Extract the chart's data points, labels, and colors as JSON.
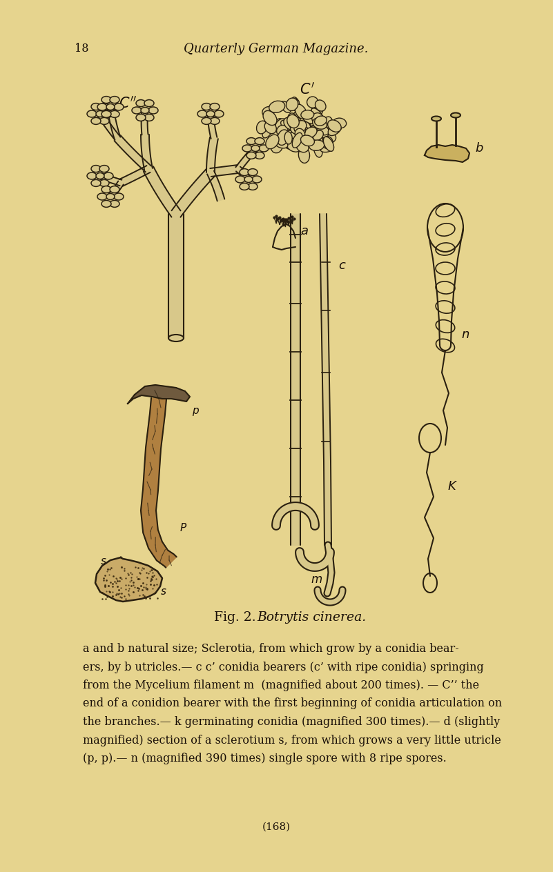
{
  "background_color": "#e6d48e",
  "page_width": 8.01,
  "page_height": 12.64,
  "page_number": "18",
  "header_text": "Quarterly German Magazine.",
  "fig_label": "Fig. 2.",
  "fig_species": "Botrytis cinerea.",
  "caption_lines": [
    "a and b natural size; Sclerotia, from which grow by a conidia bear-",
    "ers, by b utricles.— c c’ conidia bearers (c’ with ripe conidia) springing",
    "from the Mycelium filament m  (magnified about 200 times). — C’’ the",
    "end of a conidion bearer with the first beginning of conidia articulation on",
    "the branches.— k germinating conidia (magnified 300 times).— d (slightly",
    "magnified) section of a sclerotium s, from which grows a very little utricle",
    "(p, p).— n (magnified 390 times) single spore with 8 ripe spores."
  ],
  "page_num_bottom": "(168)",
  "ink_color": "#2a2010",
  "text_color": "#1a1008",
  "stem_fill": "#d8c88a",
  "branch_fill": "#ccc088"
}
